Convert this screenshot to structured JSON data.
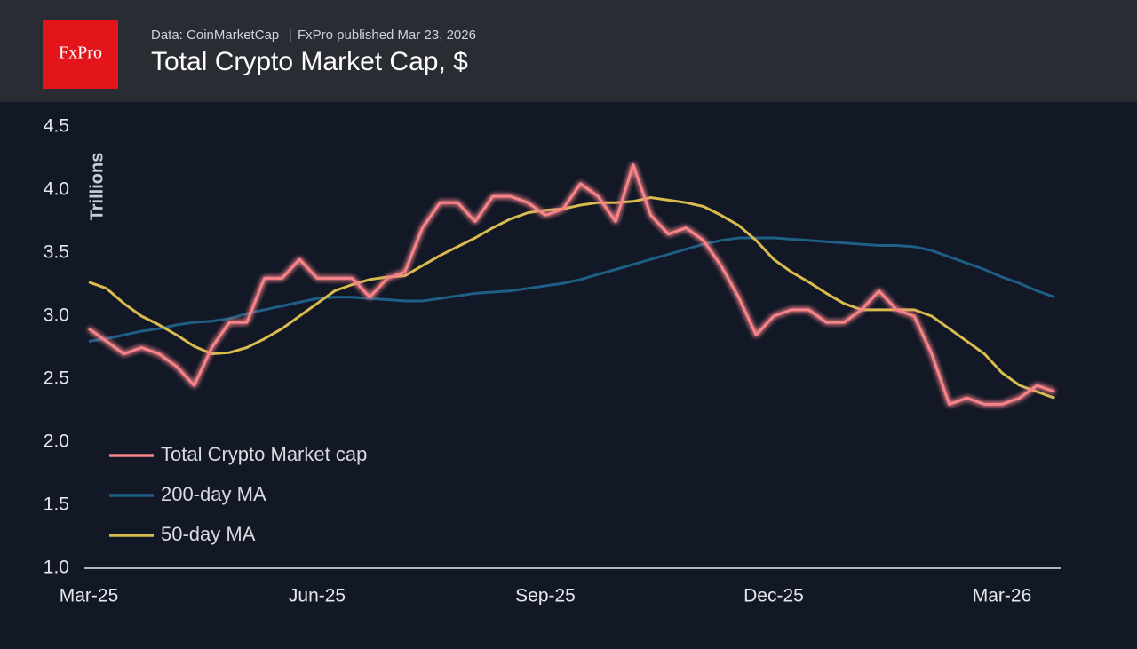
{
  "logo": "FxPro",
  "chart_data": {
    "type": "line",
    "source": "Data: CoinMarketCap",
    "published": "FxPro published Mar 23, 2026",
    "title": "Total Crypto Market Cap, $",
    "y_label": "Trillions",
    "categories": [
      "Mar-25",
      null,
      null,
      null,
      null,
      null,
      null,
      null,
      null,
      null,
      null,
      null,
      null,
      "Jun-25",
      null,
      null,
      null,
      null,
      null,
      null,
      null,
      null,
      null,
      null,
      null,
      null,
      "Sep-25",
      null,
      null,
      null,
      null,
      null,
      null,
      null,
      null,
      null,
      null,
      null,
      null,
      "Dec-25",
      null,
      null,
      null,
      null,
      null,
      null,
      null,
      null,
      null,
      null,
      null,
      null,
      "Mar-26",
      null,
      null,
      null
    ],
    "series": [
      {
        "name": "Total Crypto Market cap",
        "color": "#f8848a",
        "values": [
          2.9,
          2.8,
          2.7,
          2.75,
          2.7,
          2.6,
          2.45,
          2.75,
          2.95,
          2.95,
          3.3,
          3.3,
          3.45,
          3.3,
          3.3,
          3.3,
          3.15,
          3.3,
          3.35,
          3.7,
          3.9,
          3.9,
          3.75,
          3.95,
          3.95,
          3.9,
          3.8,
          3.85,
          4.05,
          3.95,
          3.75,
          4.2,
          3.8,
          3.65,
          3.7,
          3.6,
          3.4,
          3.15,
          2.85,
          3.0,
          3.05,
          3.05,
          2.95,
          2.95,
          3.05,
          3.2,
          3.05,
          3.0,
          2.7,
          2.3,
          2.35,
          2.3,
          2.3,
          2.35,
          2.45,
          2.4
        ]
      },
      {
        "name": "200-day MA",
        "color": "#1f5f86",
        "values": [
          2.8,
          2.82,
          2.85,
          2.88,
          2.9,
          2.93,
          2.95,
          2.96,
          2.98,
          3.02,
          3.05,
          3.08,
          3.11,
          3.14,
          3.15,
          3.15,
          3.14,
          3.13,
          3.12,
          3.12,
          3.14,
          3.16,
          3.18,
          3.19,
          3.2,
          3.22,
          3.24,
          3.26,
          3.29,
          3.33,
          3.37,
          3.41,
          3.45,
          3.49,
          3.53,
          3.57,
          3.6,
          3.62,
          3.62,
          3.62,
          3.61,
          3.6,
          3.59,
          3.58,
          3.57,
          3.56,
          3.56,
          3.55,
          3.52,
          3.47,
          3.42,
          3.37,
          3.31,
          3.26,
          3.2,
          3.15
        ]
      },
      {
        "name": "50-day MA",
        "color": "#d9bb4e",
        "values": [
          3.27,
          3.22,
          3.1,
          3.0,
          2.93,
          2.85,
          2.76,
          2.7,
          2.71,
          2.75,
          2.82,
          2.9,
          3.0,
          3.1,
          3.2,
          3.25,
          3.29,
          3.31,
          3.32,
          3.4,
          3.48,
          3.55,
          3.62,
          3.7,
          3.77,
          3.82,
          3.84,
          3.85,
          3.88,
          3.9,
          3.9,
          3.91,
          3.94,
          3.92,
          3.9,
          3.87,
          3.8,
          3.72,
          3.6,
          3.45,
          3.35,
          3.27,
          3.18,
          3.1,
          3.05,
          3.05,
          3.05,
          3.05,
          3.0,
          2.9,
          2.8,
          2.7,
          2.55,
          2.45,
          2.4,
          2.35
        ]
      }
    ],
    "ylim": [
      1,
      4.5
    ],
    "yticks": [
      {
        "value": 1,
        "label": "1.0"
      },
      1.5,
      {
        "value": 2,
        "label": "2.0"
      },
      2.5,
      {
        "value": 3,
        "label": "3.0"
      },
      3.5,
      {
        "value": 4,
        "label": "4.0"
      },
      4.5
    ],
    "legend": "lower left"
  }
}
